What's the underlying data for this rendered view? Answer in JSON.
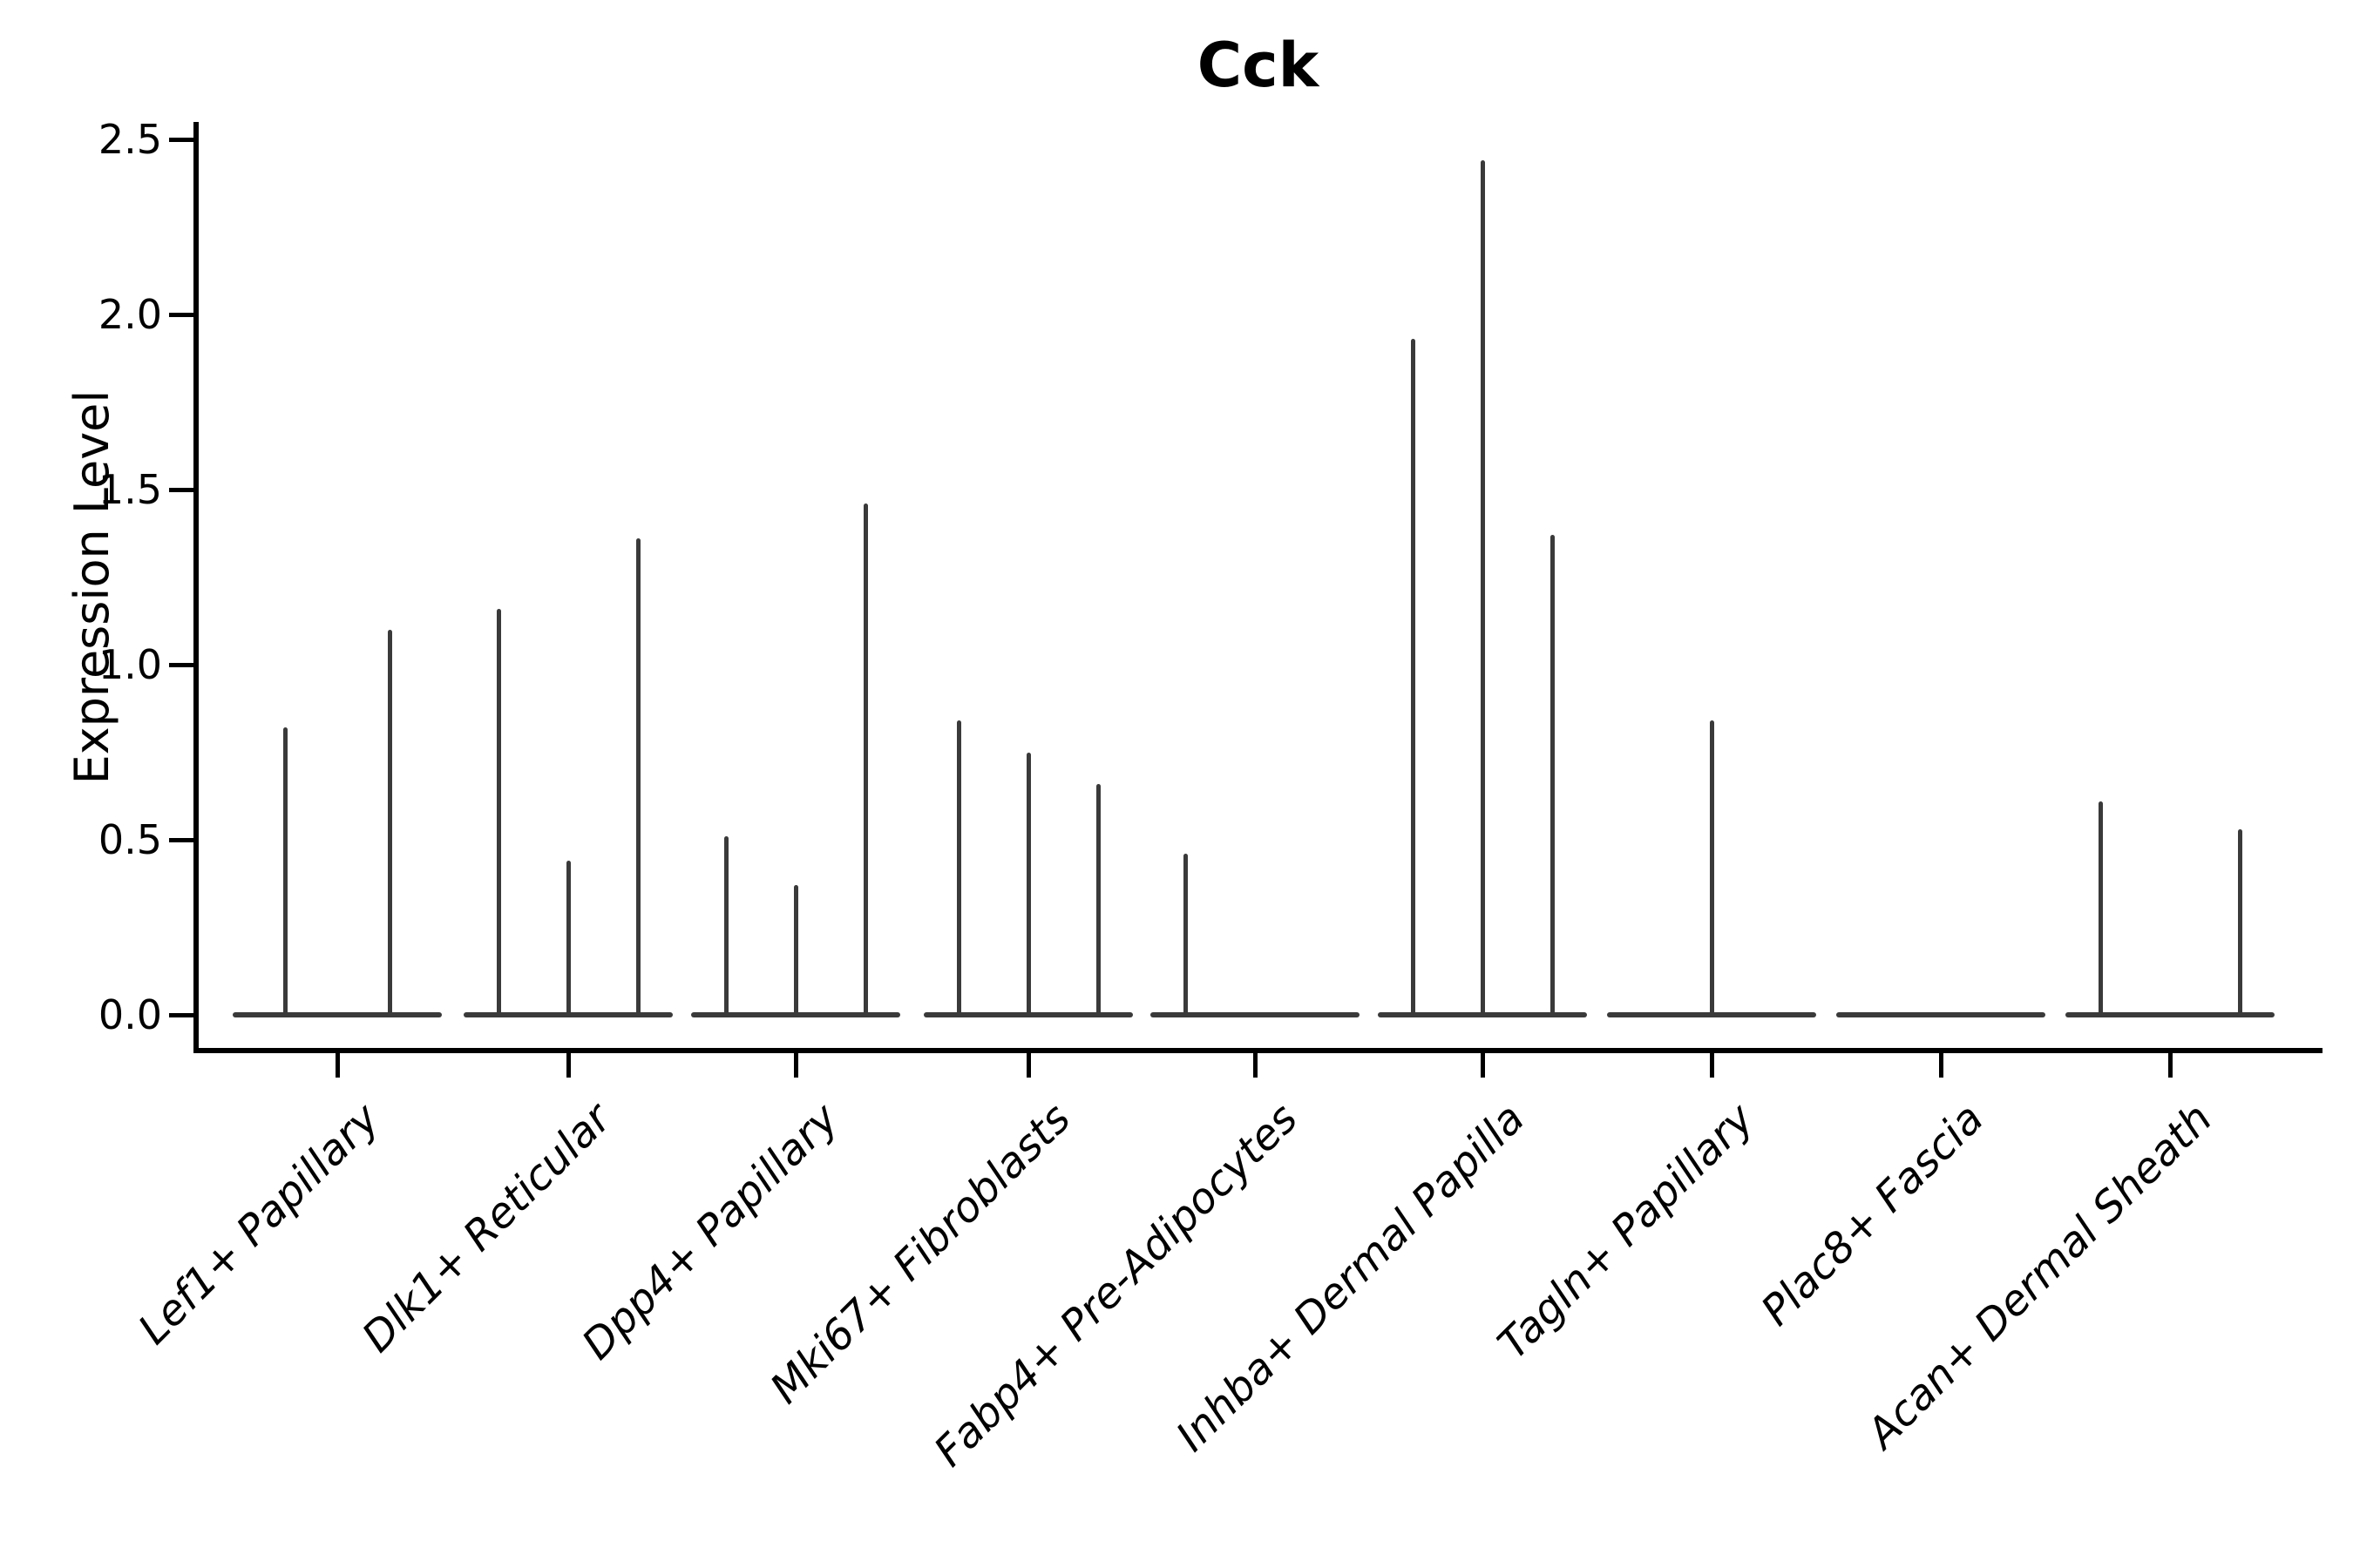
{
  "title": "Cck",
  "y_axis": {
    "label": "Expression Level",
    "tick_labels": [
      "0.0",
      "0.5",
      "1.0",
      "1.5",
      "2.0",
      "2.5"
    ]
  },
  "chart_data": {
    "type": "violin",
    "title": "Cck",
    "xlabel": "",
    "ylabel": "Expression Level",
    "ylim": [
      0,
      2.6
    ],
    "yticks": [
      0.0,
      0.5,
      1.0,
      1.5,
      2.0,
      2.5
    ],
    "grid": false,
    "legend": "none",
    "violin_color": "#3a3a3a",
    "categories": [
      "Lef1+ Papillary",
      "Dlk1+ Reticular",
      "Dpp4+ Papillary",
      "Mki67+ Fibroblasts",
      "Fabp4+ Pre-Adipocytes",
      "Inhba+ Dermal Papilla",
      "Tagln+ Papillary",
      "Plac8+ Fascia",
      "Acan+ Dermal Sheath"
    ],
    "series": [
      {
        "category": "Lef1+ Papillary",
        "violin_max_expression": [
          0.82,
          1.1
        ]
      },
      {
        "category": "Dlk1+ Reticular",
        "violin_max_expression": [
          1.16,
          0.44,
          1.36
        ]
      },
      {
        "category": "Dpp4+ Papillary",
        "violin_max_expression": [
          0.51,
          0.37,
          1.46
        ]
      },
      {
        "category": "Mki67+ Fibroblasts",
        "violin_max_expression": [
          0.84,
          0.75,
          0.66
        ]
      },
      {
        "category": "Fabp4+ Pre-Adipocytes",
        "violin_max_expression": [
          0.46,
          0,
          0
        ]
      },
      {
        "category": "Inhba+ Dermal Papilla",
        "violin_max_expression": [
          1.93,
          2.44,
          1.37
        ]
      },
      {
        "category": "Tagln+ Papillary",
        "violin_max_expression": [
          0,
          0.84,
          0
        ]
      },
      {
        "category": "Plac8+ Fascia",
        "violin_max_expression": [
          0,
          0,
          0
        ]
      },
      {
        "category": "Acan+ Dermal Sheath",
        "violin_max_expression": [
          0.61,
          0,
          0.53
        ]
      }
    ]
  }
}
